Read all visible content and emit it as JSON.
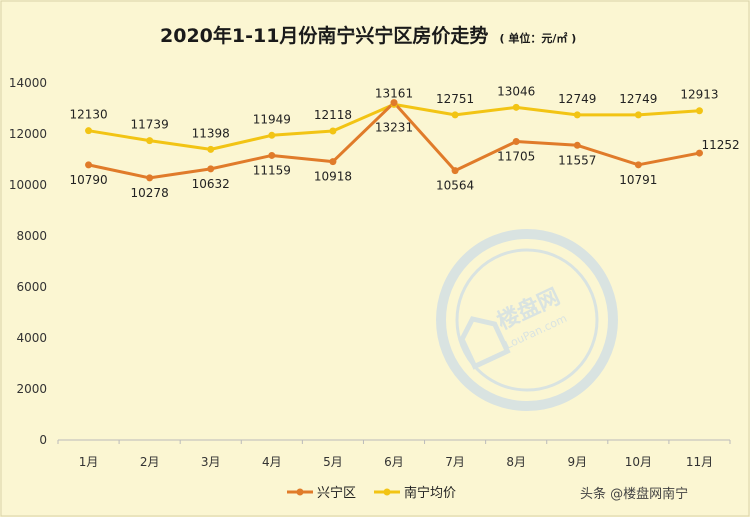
{
  "chart_data": {
    "type": "line",
    "title": "2020年1-11月份南宁兴宁区房价走势",
    "unit_label": "( 单位：元/㎡ )",
    "categories": [
      "1月",
      "2月",
      "3月",
      "4月",
      "5月",
      "6月",
      "7月",
      "8月",
      "9月",
      "10月",
      "11月"
    ],
    "series": [
      {
        "name": "兴宁区",
        "color": "#e07b2a",
        "values": [
          10790,
          10278,
          10632,
          11159,
          10918,
          13231,
          10564,
          11705,
          11557,
          10791,
          11252
        ]
      },
      {
        "name": "南宁均价",
        "color": "#f2c414",
        "values": [
          12130,
          11739,
          11398,
          11949,
          12118,
          13161,
          12751,
          13046,
          12749,
          12749,
          12913
        ]
      }
    ],
    "ylim": [
      0,
      14000
    ],
    "yticks": [
      0,
      2000,
      4000,
      6000,
      8000,
      10000,
      12000,
      14000
    ],
    "grid": false,
    "legend_position": "bottom"
  },
  "watermark": {
    "brand": "楼盘网",
    "domain": "LouPan.com"
  },
  "credit": "头条 @楼盘网南宁"
}
